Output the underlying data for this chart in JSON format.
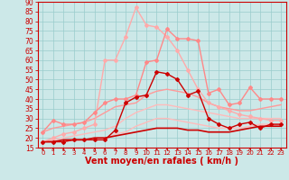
{
  "background_color": "#cce8e8",
  "grid_color": "#99cccc",
  "xlabel": "Vent moyen/en rafales ( km/h )",
  "xlim": [
    -0.5,
    23.5
  ],
  "ylim": [
    15,
    90
  ],
  "yticks": [
    15,
    20,
    25,
    30,
    35,
    40,
    45,
    50,
    55,
    60,
    65,
    70,
    75,
    80,
    85,
    90
  ],
  "xticks": [
    0,
    1,
    2,
    3,
    4,
    5,
    6,
    7,
    8,
    9,
    10,
    11,
    12,
    13,
    14,
    15,
    16,
    17,
    18,
    19,
    20,
    21,
    22,
    23
  ],
  "x": [
    0,
    1,
    2,
    3,
    4,
    5,
    6,
    7,
    8,
    9,
    10,
    11,
    12,
    13,
    14,
    15,
    16,
    17,
    18,
    19,
    20,
    21,
    22,
    23
  ],
  "lines": [
    {
      "y": [
        18,
        18,
        18,
        19,
        19,
        19,
        19,
        22,
        23,
        26,
        28,
        30,
        30,
        29,
        28,
        27,
        26,
        25,
        25,
        25,
        26,
        27,
        27,
        27
      ],
      "color": "#ffbbbb",
      "lw": 1.0,
      "marker": null,
      "ms": 0,
      "zorder": 2
    },
    {
      "y": [
        18,
        19,
        20,
        21,
        22,
        23,
        24,
        26,
        30,
        33,
        35,
        37,
        37,
        36,
        35,
        34,
        33,
        32,
        31,
        30,
        30,
        30,
        30,
        30
      ],
      "color": "#ffbbbb",
      "lw": 1.0,
      "marker": null,
      "ms": 0,
      "zorder": 2
    },
    {
      "y": [
        23,
        25,
        26,
        27,
        28,
        30,
        33,
        36,
        37,
        38,
        42,
        44,
        45,
        44,
        43,
        41,
        38,
        36,
        35,
        34,
        34,
        35,
        36,
        37
      ],
      "color": "#ff9999",
      "lw": 1.0,
      "marker": null,
      "ms": 0,
      "zorder": 2
    },
    {
      "y": [
        18,
        18,
        19,
        19,
        19,
        20,
        20,
        21,
        22,
        23,
        24,
        25,
        25,
        25,
        24,
        24,
        23,
        23,
        23,
        24,
        25,
        26,
        26,
        26
      ],
      "color": "#cc0000",
      "lw": 1.2,
      "marker": null,
      "ms": 0,
      "zorder": 3
    },
    {
      "y": [
        18,
        20,
        22,
        23,
        25,
        27,
        60,
        60,
        72,
        87,
        78,
        77,
        72,
        65,
        55,
        45,
        38,
        36,
        34,
        32,
        31,
        30,
        29,
        29
      ],
      "color": "#ffaaaa",
      "lw": 1.0,
      "marker": "D",
      "ms": 2.0,
      "zorder": 4
    },
    {
      "y": [
        23,
        29,
        27,
        27,
        28,
        33,
        38,
        40,
        40,
        42,
        59,
        60,
        76,
        71,
        71,
        70,
        43,
        45,
        37,
        38,
        46,
        40,
        40,
        40
      ],
      "color": "#ff8888",
      "lw": 1.0,
      "marker": "D",
      "ms": 2.0,
      "zorder": 4
    },
    {
      "y": [
        18,
        18,
        18,
        19,
        19,
        19,
        19,
        24,
        38,
        41,
        42,
        54,
        53,
        50,
        42,
        44,
        30,
        27,
        25,
        27,
        28,
        25,
        27,
        27
      ],
      "color": "#cc0000",
      "lw": 1.0,
      "marker": "D",
      "ms": 2.0,
      "zorder": 5
    }
  ],
  "arrow_color": "#cc0000",
  "xlabel_color": "#cc0000",
  "xlabel_fontsize": 7,
  "ytick_fontsize": 5.5,
  "xtick_fontsize": 5.0,
  "tick_color": "#cc0000"
}
